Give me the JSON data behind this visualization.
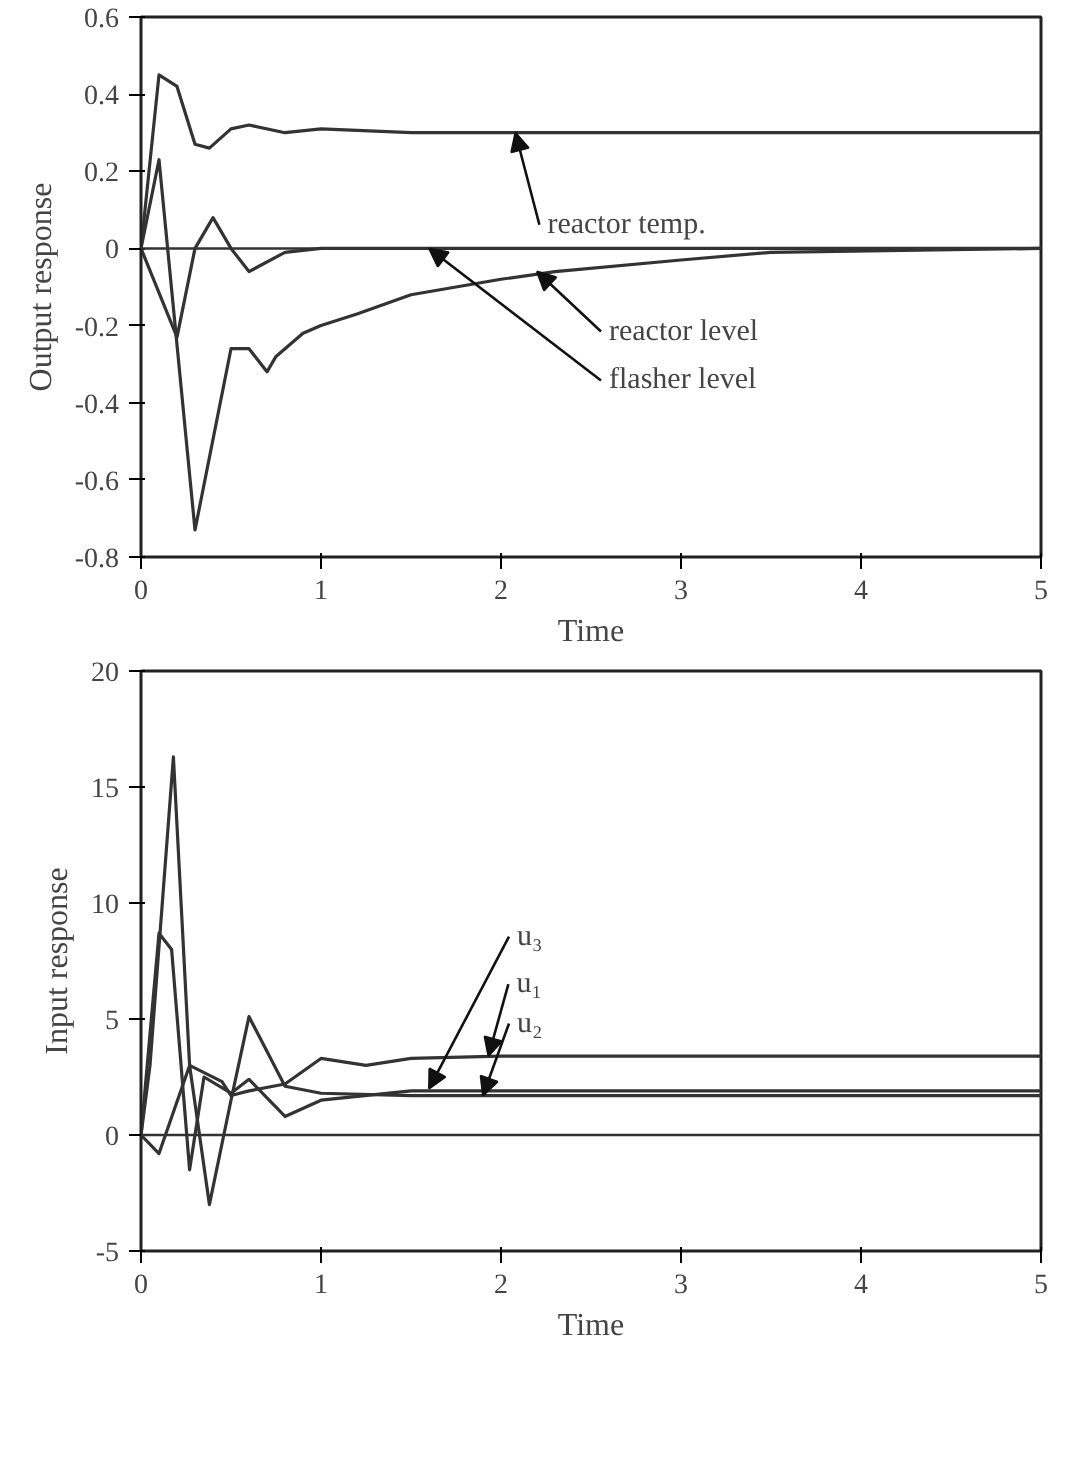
{
  "chart_data": [
    {
      "type": "line",
      "xlabel": "Time",
      "ylabel": "Output response",
      "xlim": [
        0,
        5
      ],
      "ylim": [
        -0.8,
        0.6
      ],
      "xticks": [
        0,
        1,
        2,
        3,
        4,
        5
      ],
      "yticks": [
        -0.8,
        -0.6,
        -0.4,
        -0.2,
        0,
        0.2,
        0.4,
        0.6
      ],
      "grid": false,
      "marker": "none",
      "line_style": "solid",
      "ref_lines": [
        {
          "axis": "y",
          "value": 0,
          "color": "#333333"
        }
      ],
      "series": [
        {
          "color": "#333333",
          "x": [
            0,
            0.1,
            0.2,
            0.3,
            0.38,
            0.5,
            0.6,
            0.8,
            1,
            1.5,
            2,
            5
          ],
          "values": [
            0,
            0.45,
            0.42,
            0.27,
            0.26,
            0.31,
            0.32,
            0.3,
            0.31,
            0.3,
            0.3,
            0.3
          ]
        },
        {
          "color": "#333333",
          "x": [
            0,
            0.1,
            0.3,
            0.5,
            0.6,
            0.7,
            0.75,
            0.9,
            1,
            1.2,
            1.5,
            2,
            2.3,
            3,
            3.5,
            5
          ],
          "values": [
            0,
            0.23,
            -0.73,
            -0.26,
            -0.26,
            -0.32,
            -0.28,
            -0.22,
            -0.2,
            -0.17,
            -0.12,
            -0.08,
            -0.06,
            -0.03,
            -0.01,
            0
          ]
        },
        {
          "color": "#333333",
          "x": [
            0,
            0.2,
            0.3,
            0.4,
            0.5,
            0.6,
            0.8,
            1,
            5
          ],
          "values": [
            0,
            -0.23,
            0,
            0.08,
            0,
            -0.06,
            -0.01,
            0,
            0
          ]
        }
      ],
      "annotations": [
        {
          "text": "reactor temp.",
          "x": 2.08,
          "y": 0.3
        },
        {
          "text": "reactor level",
          "x": 2.2,
          "y": -0.06
        },
        {
          "text": "flasher level",
          "x": 1.6,
          "y": 0
        }
      ]
    },
    {
      "type": "line",
      "xlabel": "Time",
      "ylabel": "Input response",
      "xlim": [
        0,
        5
      ],
      "ylim": [
        -5,
        20
      ],
      "xticks": [
        0,
        1,
        2,
        3,
        4,
        5
      ],
      "yticks": [
        -5,
        0,
        5,
        10,
        15,
        20
      ],
      "grid": false,
      "marker": "none",
      "line_style": "solid",
      "ref_lines": [
        {
          "axis": "y",
          "value": 0,
          "color": "#333333"
        }
      ],
      "series": [
        {
          "color": "#333333",
          "x": [
            0,
            0.1,
            0.27,
            0.45,
            0.5,
            0.6,
            0.8,
            1,
            1.25,
            1.5,
            2,
            5
          ],
          "values": [
            0,
            -0.8,
            3,
            2.3,
            1.7,
            1.9,
            2.2,
            3.3,
            3,
            3.3,
            3.4,
            3.4
          ]
        },
        {
          "color": "#333333",
          "x": [
            0,
            0.05,
            0.18,
            0.27,
            0.38,
            0.5,
            0.6,
            0.8,
            1,
            1.5,
            2,
            5
          ],
          "values": [
            0,
            3,
            16.3,
            3,
            -3,
            1.5,
            5.1,
            2.1,
            1.8,
            1.7,
            1.7,
            1.7
          ]
        },
        {
          "color": "#333333",
          "x": [
            0,
            0.1,
            0.17,
            0.27,
            0.35,
            0.5,
            0.6,
            0.8,
            1,
            1.5,
            2,
            5
          ],
          "values": [
            0,
            8.7,
            8,
            -1.5,
            2.5,
            1.8,
            2.4,
            0.8,
            1.5,
            1.9,
            1.9,
            1.9
          ]
        }
      ],
      "annotations": [
        {
          "text": "u₃",
          "x": 1.6,
          "y": 2
        },
        {
          "text": "u₁",
          "x": 1.93,
          "y": 3.4
        },
        {
          "text": "u₂",
          "x": 1.9,
          "y": 1.7
        }
      ]
    }
  ]
}
